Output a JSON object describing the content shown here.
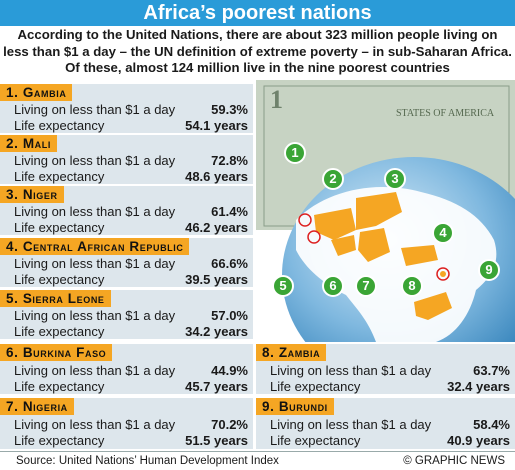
{
  "title": "Africa’s poorest nations",
  "intro": "According to the United Nations, there are about 323 million people living on less than $1 a day – the UN definition of extreme poverty – in sub-Saharan Africa. Of these, almost 124 million live in the nine poorest countries",
  "labels": {
    "poverty": "Living on less than $1 a day",
    "life": "Life expectancy"
  },
  "countries": [
    {
      "rank": "1.",
      "name": "Gambia",
      "poverty": "59.3%",
      "life": "54.1 years"
    },
    {
      "rank": "2.",
      "name": "Mali",
      "poverty": "72.8%",
      "life": "48.6 years"
    },
    {
      "rank": "3.",
      "name": "Niger",
      "poverty": "61.4%",
      "life": "46.2 years"
    },
    {
      "rank": "4.",
      "name": "Central African Republic",
      "poverty": "66.6%",
      "life": "39.5 years"
    },
    {
      "rank": "5.",
      "name": "Sierra Leone",
      "poverty": "57.0%",
      "life": "34.2 years"
    },
    {
      "rank": "6.",
      "name": "Burkina Faso",
      "poverty": "44.9%",
      "life": "45.7 years"
    },
    {
      "rank": "7.",
      "name": "Nigeria",
      "poverty": "70.2%",
      "life": "51.5 years"
    },
    {
      "rank": "8.",
      "name": "Zambia",
      "poverty": "63.7%",
      "life": "32.4 years"
    },
    {
      "rank": "9.",
      "name": "Burundi",
      "poverty": "58.4%",
      "life": "40.9 years"
    }
  ],
  "map": {
    "markers": [
      "1",
      "2",
      "3",
      "4",
      "5",
      "6",
      "7",
      "8",
      "9"
    ],
    "banknote_text": "STATES OF AMERICA",
    "banknote_corner": "1"
  },
  "footer": {
    "source": "Source: United Nations’ Human Development Index",
    "credit": "© GRAPHIC NEWS"
  },
  "colors": {
    "title_bar": "#2a9bd8",
    "header_tab": "#f5a623",
    "panel": "#dde6ec",
    "highlight_country": "#f5a623",
    "marker": "#3aa535",
    "ocean": "#3d8fc6"
  }
}
